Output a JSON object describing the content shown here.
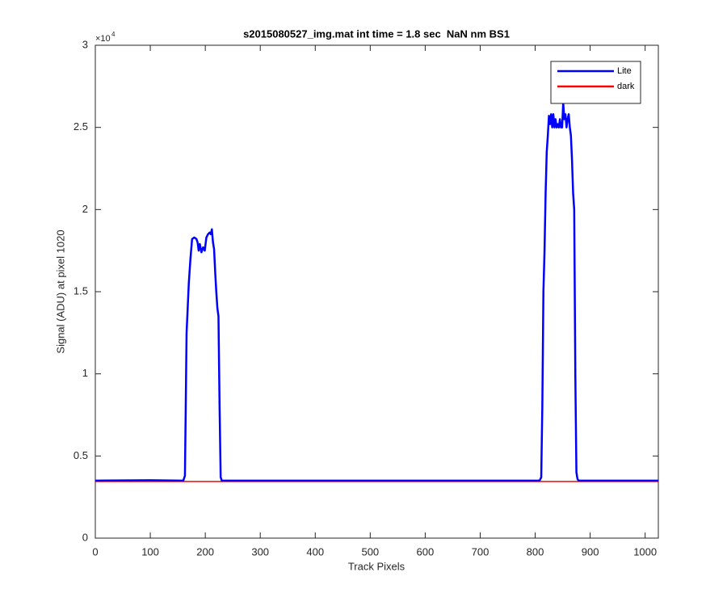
{
  "chart_data": {
    "type": "line",
    "title": "s2015080527_img.mat int time = 1.8 sec  NaN nm BS1",
    "x_label": "Track Pixels",
    "y_label": "Signal (ADU) at pixel 1020",
    "y_multiplier": "×10",
    "y_multiplier_exponent": "4",
    "xlim": [
      0,
      1024
    ],
    "xticks": [
      0,
      100,
      200,
      300,
      400,
      500,
      600,
      700,
      800,
      900,
      1000
    ],
    "ylim": [
      0,
      3
    ],
    "yticks": [
      0,
      0.5,
      1,
      1.5,
      2,
      2.5,
      3
    ],
    "legend": "northeast",
    "series": [
      {
        "name": "Lite",
        "color": "#0000ff",
        "x": [
          0,
          100,
          160,
          163,
          166,
          168,
          170,
          173,
          176,
          180,
          184,
          186,
          188,
          190,
          193,
          196,
          199,
          202,
          205,
          208,
          210,
          212,
          214,
          216,
          218,
          220,
          222,
          224,
          226,
          228,
          230,
          300,
          500,
          700,
          808,
          811,
          813,
          815,
          817,
          819,
          821,
          823,
          825,
          827,
          829,
          831,
          833,
          835,
          837,
          839,
          841,
          843,
          845,
          847,
          849,
          851,
          853,
          855,
          857,
          859,
          861,
          863,
          865,
          867,
          869,
          871,
          873,
          875,
          877,
          879,
          900,
          1024
        ],
        "values": [
          0.35,
          0.352,
          0.35,
          0.38,
          1.25,
          1.4,
          1.55,
          1.7,
          1.82,
          1.83,
          1.82,
          1.8,
          1.75,
          1.79,
          1.74,
          1.77,
          1.75,
          1.83,
          1.85,
          1.86,
          1.85,
          1.88,
          1.8,
          1.76,
          1.62,
          1.5,
          1.4,
          1.35,
          0.8,
          0.37,
          0.35,
          0.35,
          0.35,
          0.35,
          0.35,
          0.37,
          0.8,
          1.5,
          1.75,
          2.1,
          2.35,
          2.45,
          2.57,
          2.52,
          2.58,
          2.5,
          2.58,
          2.5,
          2.55,
          2.5,
          2.52,
          2.5,
          2.55,
          2.5,
          2.5,
          2.65,
          2.55,
          2.58,
          2.5,
          2.55,
          2.58,
          2.5,
          2.45,
          2.3,
          2.1,
          2.0,
          1.0,
          0.4,
          0.36,
          0.35,
          0.35,
          0.35
        ]
      },
      {
        "name": "dark",
        "color": "#ff0000",
        "x": [
          0,
          1024
        ],
        "values": [
          0.345,
          0.345
        ]
      }
    ]
  }
}
